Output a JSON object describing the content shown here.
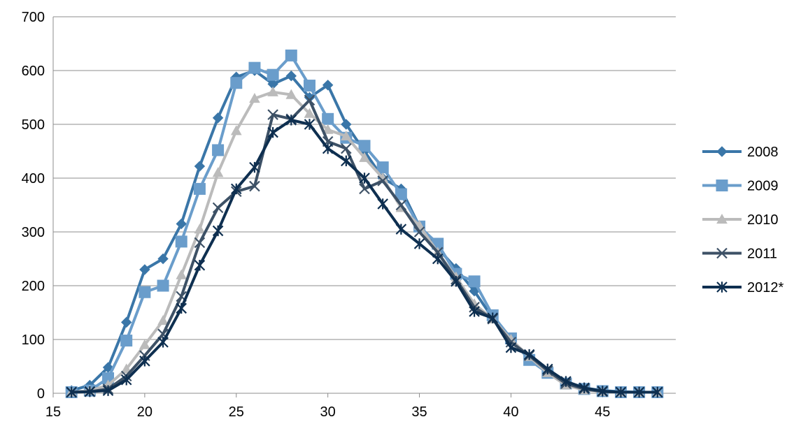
{
  "chart_data": {
    "type": "line",
    "title": "",
    "xlabel": "",
    "ylabel": "",
    "xlim": [
      15,
      49
    ],
    "ylim": [
      0,
      700
    ],
    "x_ticks": [
      15,
      20,
      25,
      30,
      35,
      40,
      45
    ],
    "y_ticks": [
      0,
      100,
      200,
      300,
      400,
      500,
      600,
      700
    ],
    "grid": "horizontal",
    "legend_position": "right",
    "x": [
      16,
      17,
      18,
      19,
      20,
      21,
      22,
      23,
      24,
      25,
      26,
      27,
      28,
      29,
      30,
      31,
      32,
      33,
      34,
      35,
      36,
      37,
      38,
      39,
      40,
      41,
      42,
      43,
      44,
      45,
      46,
      47,
      48
    ],
    "series": [
      {
        "name": "2008",
        "color": "#3A76A8",
        "marker": "diamond",
        "values": [
          5,
          15,
          48,
          132,
          230,
          250,
          315,
          422,
          512,
          588,
          600,
          575,
          590,
          550,
          573,
          500,
          450,
          400,
          380,
          310,
          270,
          232,
          190,
          140,
          100,
          65,
          40,
          20,
          10,
          5,
          3,
          2,
          2
        ]
      },
      {
        "name": "2009",
        "color": "#6A9DCB",
        "marker": "square",
        "values": [
          2,
          5,
          28,
          98,
          188,
          200,
          282,
          380,
          452,
          577,
          605,
          592,
          628,
          572,
          510,
          475,
          460,
          420,
          370,
          310,
          278,
          222,
          208,
          145,
          102,
          62,
          38,
          18,
          8,
          4,
          2,
          2,
          2
        ]
      },
      {
        "name": "2010",
        "color": "#BBBBBB",
        "marker": "triangle",
        "values": [
          2,
          5,
          15,
          45,
          90,
          135,
          220,
          305,
          410,
          488,
          548,
          560,
          555,
          520,
          490,
          478,
          438,
          400,
          345,
          312,
          262,
          216,
          166,
          138,
          100,
          68,
          38,
          15,
          6,
          3,
          2,
          2,
          2
        ]
      },
      {
        "name": "2011",
        "color": "#3D5166",
        "marker": "x",
        "values": [
          2,
          3,
          8,
          32,
          70,
          110,
          180,
          280,
          345,
          375,
          385,
          518,
          510,
          545,
          468,
          455,
          380,
          395,
          350,
          300,
          262,
          212,
          160,
          138,
          95,
          70,
          42,
          18,
          8,
          3,
          2,
          2,
          2
        ]
      },
      {
        "name": "2012*",
        "color": "#0E2F50",
        "marker": "star",
        "values": [
          2,
          3,
          5,
          25,
          60,
          95,
          158,
          238,
          302,
          380,
          420,
          485,
          508,
          500,
          455,
          432,
          400,
          352,
          305,
          278,
          250,
          208,
          152,
          140,
          85,
          72,
          45,
          22,
          10,
          4,
          2,
          2,
          2
        ]
      }
    ]
  }
}
